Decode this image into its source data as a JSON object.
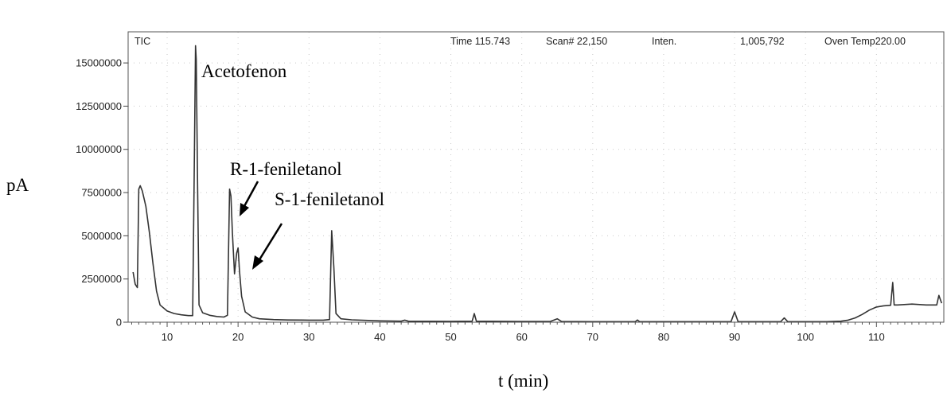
{
  "chart_data": {
    "type": "line",
    "title": "",
    "xlabel": "t (min)",
    "ylabel": "pA",
    "xlim": [
      4.5,
      119.5
    ],
    "ylim": [
      0,
      16800000
    ],
    "xticks": [
      10,
      20,
      30,
      40,
      50,
      60,
      70,
      80,
      90,
      100,
      110
    ],
    "xtick_labels": [
      "10",
      "20",
      "30",
      "40",
      "50",
      "60",
      "70",
      "80",
      "90",
      "100",
      "110"
    ],
    "yticks": [
      0,
      2500000,
      5000000,
      7500000,
      10000000,
      12500000,
      15000000
    ],
    "ytick_labels": [
      "0",
      "2500000",
      "5000000",
      "7500000",
      "10000000",
      "12500000",
      "15000000"
    ],
    "grid": "dotted",
    "header": {
      "tic": "TIC",
      "time": "Time 115.743",
      "scan": "Scan# 22,150",
      "inten_label": "Inten.",
      "inten_value": "1,005,792",
      "oven": "Oven Temp220.00"
    },
    "annotations": [
      "Acetofenon",
      "R-1-feniletanol",
      "S-1-feniletanol"
    ],
    "series": [
      {
        "color": "#333333",
        "points": [
          [
            5.2,
            2900000
          ],
          [
            5.5,
            2200000
          ],
          [
            5.8,
            2000000
          ],
          [
            6.0,
            7700000
          ],
          [
            6.2,
            7900000
          ],
          [
            6.5,
            7600000
          ],
          [
            7.0,
            6700000
          ],
          [
            7.5,
            5200000
          ],
          [
            8.0,
            3400000
          ],
          [
            8.5,
            1800000
          ],
          [
            9.0,
            1000000
          ],
          [
            10.0,
            650000
          ],
          [
            11.0,
            500000
          ],
          [
            12.0,
            430000
          ],
          [
            13.0,
            380000
          ],
          [
            13.6,
            380000
          ],
          [
            13.8,
            8000000
          ],
          [
            14.0,
            16000000
          ],
          [
            14.1,
            15200000
          ],
          [
            14.3,
            7900000
          ],
          [
            14.5,
            1000000
          ],
          [
            15.0,
            550000
          ],
          [
            16.0,
            400000
          ],
          [
            17.0,
            330000
          ],
          [
            18.0,
            300000
          ],
          [
            18.5,
            400000
          ],
          [
            18.8,
            7700000
          ],
          [
            19.0,
            7300000
          ],
          [
            19.2,
            5200000
          ],
          [
            19.5,
            2800000
          ],
          [
            19.8,
            4000000
          ],
          [
            20.0,
            4300000
          ],
          [
            20.2,
            3000000
          ],
          [
            20.5,
            1500000
          ],
          [
            21.0,
            600000
          ],
          [
            22.0,
            300000
          ],
          [
            23.0,
            200000
          ],
          [
            25.0,
            150000
          ],
          [
            27.0,
            130000
          ],
          [
            30.0,
            120000
          ],
          [
            32.0,
            120000
          ],
          [
            32.9,
            150000
          ],
          [
            33.2,
            5300000
          ],
          [
            33.5,
            3200000
          ],
          [
            33.8,
            500000
          ],
          [
            34.5,
            200000
          ],
          [
            36.0,
            140000
          ],
          [
            40.0,
            80000
          ],
          [
            43.0,
            60000
          ],
          [
            43.5,
            120000
          ],
          [
            44.0,
            60000
          ],
          [
            50.0,
            50000
          ],
          [
            53.0,
            60000
          ],
          [
            53.3,
            500000
          ],
          [
            53.6,
            60000
          ],
          [
            60.0,
            40000
          ],
          [
            64.0,
            40000
          ],
          [
            65.0,
            200000
          ],
          [
            65.6,
            40000
          ],
          [
            70.0,
            30000
          ],
          [
            76.0,
            30000
          ],
          [
            76.3,
            130000
          ],
          [
            76.6,
            30000
          ],
          [
            85.0,
            30000
          ],
          [
            89.5,
            30000
          ],
          [
            90.0,
            600000
          ],
          [
            90.5,
            30000
          ],
          [
            96.5,
            30000
          ],
          [
            97.0,
            250000
          ],
          [
            97.5,
            30000
          ],
          [
            103.0,
            30000
          ],
          [
            105.0,
            60000
          ],
          [
            106.0,
            120000
          ],
          [
            107.0,
            250000
          ],
          [
            108.0,
            450000
          ],
          [
            109.0,
            700000
          ],
          [
            110.0,
            880000
          ],
          [
            111.0,
            950000
          ],
          [
            112.0,
            980000
          ],
          [
            112.3,
            2300000
          ],
          [
            112.5,
            1000000
          ],
          [
            113.0,
            1000000
          ],
          [
            115.0,
            1050000
          ],
          [
            117.0,
            1000000
          ],
          [
            118.5,
            1000000
          ],
          [
            118.8,
            1550000
          ],
          [
            119.2,
            1100000
          ]
        ]
      }
    ]
  }
}
